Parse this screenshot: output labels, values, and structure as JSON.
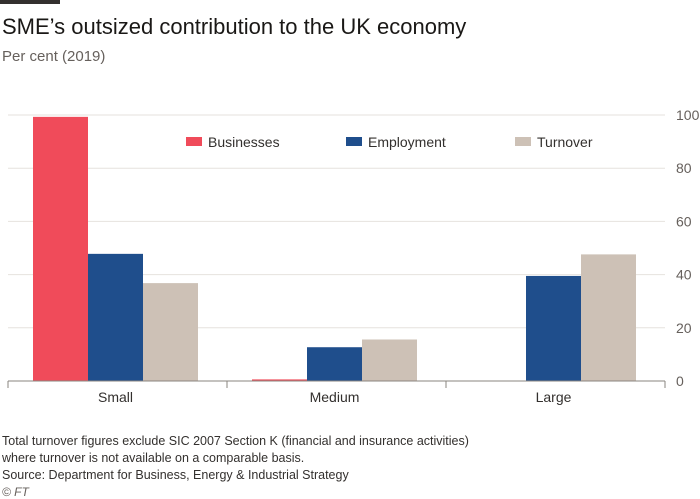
{
  "header": {
    "title": "SME’s outsized contribution to the UK economy",
    "subtitle": "Per cent (2019)"
  },
  "notes": {
    "line1": "Total turnover figures exclude SIC 2007 Section K (financial and insurance activities)",
    "line2": "where turnover is not available on a comparable basis.",
    "source": "Source: Department for Business, Energy & Industrial Strategy",
    "credit": "© FT"
  },
  "chart_data": {
    "type": "bar",
    "categories": [
      "Small",
      "Medium",
      "Large"
    ],
    "series": [
      {
        "name": "Businesses",
        "color": "#f04b5a",
        "values": [
          99.3,
          0.6,
          0
        ]
      },
      {
        "name": "Employment",
        "color": "#1f4e8c",
        "values": [
          47.8,
          12.7,
          39.5
        ]
      },
      {
        "name": "Turnover",
        "color": "#cdc1b6",
        "values": [
          36.8,
          15.6,
          47.6
        ]
      }
    ],
    "ylim": [
      0,
      100
    ],
    "yticks": [
      0,
      20,
      40,
      60,
      80,
      100
    ],
    "yaxis_side": "right",
    "grid": true,
    "legend_position": "top"
  }
}
